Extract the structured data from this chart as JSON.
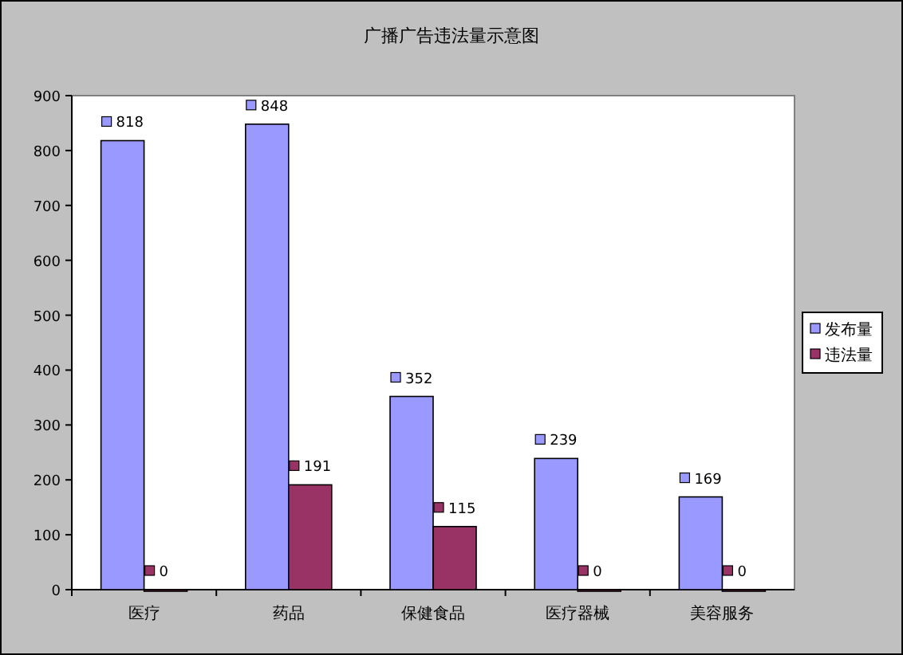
{
  "chart_data": {
    "type": "bar",
    "title": "广播广告违法量示意图",
    "categories": [
      "医疗",
      "药品",
      "保健食品",
      "医疗器械",
      "美容服务"
    ],
    "series": [
      {
        "name": "发布量",
        "color": "#9999ff",
        "values": [
          818,
          848,
          352,
          239,
          169
        ]
      },
      {
        "name": "违法量",
        "color": "#993366",
        "values": [
          0,
          191,
          115,
          0,
          0
        ]
      }
    ],
    "ylim": [
      0,
      900
    ],
    "yticks": [
      0,
      100,
      200,
      300,
      400,
      500,
      600,
      700,
      800,
      900
    ],
    "grid": false,
    "legend": "right",
    "data_labels": true
  }
}
